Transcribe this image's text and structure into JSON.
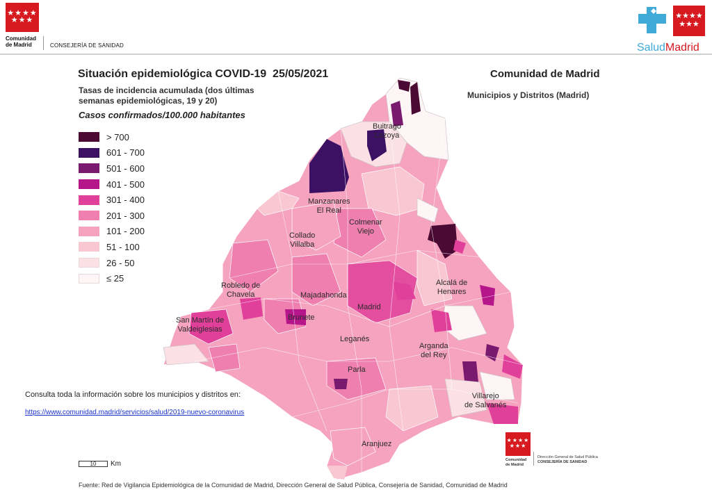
{
  "header": {
    "logo_left_text": [
      "Comunidad",
      "de Madrid"
    ],
    "consejeria": "CONSEJERÍA DE SANIDAD",
    "brand_salud": "Salud",
    "brand_madrid": "Madrid"
  },
  "title": {
    "main": "Situación epidemiológica COVID-19  25/05/2021",
    "subtitle_lines": [
      "Tasas de incidencia acumulada (dos últimas",
      "semanas epidemiológicas, 19 y 20)"
    ],
    "units": "Casos confirmados/100.000 habitantes",
    "region": "Comunidad de Madrid",
    "scope": "Municipios y Distritos (Madrid)"
  },
  "legend": [
    {
      "label": "> 700",
      "color": "#4a0a33"
    },
    {
      "label": "601 - 700",
      "color": "#3c1063"
    },
    {
      "label": "501 - 600",
      "color": "#7a1a6e"
    },
    {
      "label": "401 - 500",
      "color": "#b5168a"
    },
    {
      "label": "301 - 400",
      "color": "#e0409a"
    },
    {
      "label": "201 - 300",
      "color": "#ee7fae"
    },
    {
      "label": "101 - 200",
      "color": "#f5a3bf"
    },
    {
      "label": "51 - 100",
      "color": "#f9c7d2"
    },
    {
      "label": "26 - 50",
      "color": "#fbe1e6"
    },
    {
      "label": "≤ 25",
      "color": "#fdf5f6"
    }
  ],
  "map_labels": {
    "buitrago": [
      "Buitrago",
      "Lozoya"
    ],
    "manzanares": [
      "Manzanares",
      "El Real"
    ],
    "colmenar": [
      "Colmenar",
      "Viejo"
    ],
    "collado": [
      "Collado",
      "Villalba"
    ],
    "robledo": [
      "Robledo de",
      "Chavela"
    ],
    "majadahonda": [
      "Majadahonda"
    ],
    "alcala": [
      "Alcalá de",
      "Henares"
    ],
    "madrid": [
      "Madrid"
    ],
    "sanmartin": [
      "San Martín de",
      "Valdeiglesias"
    ],
    "brunete": [
      "Brunete"
    ],
    "leganes": [
      "Leganés"
    ],
    "arganda": [
      "Arganda",
      "del Rey"
    ],
    "parla": [
      "Parla"
    ],
    "villarejo": [
      "Villarejo",
      "de Salvanés"
    ],
    "aranjuez": [
      "Aranjuez"
    ]
  },
  "scale": {
    "value": "10",
    "unit": "Km"
  },
  "info": {
    "note": "Consulta toda la información sobre los municipios y distritos en:",
    "link": "https://www.comunidad.madrid/servicios/salud/2019-nuevo-coronavirus"
  },
  "footer_org": {
    "logo_text": [
      "Comunidad",
      "de Madrid"
    ],
    "lines": [
      "Dirección General de Salud Pública",
      "CONSEJERÍA DE SANIDAD"
    ]
  },
  "source": "Fuente: Red de Vigilancia Epidemiológica de la Comunidad de Madrid, Dirección General de Salud Pública, Consejería de Sanidad, Comunidad de Madrid"
}
